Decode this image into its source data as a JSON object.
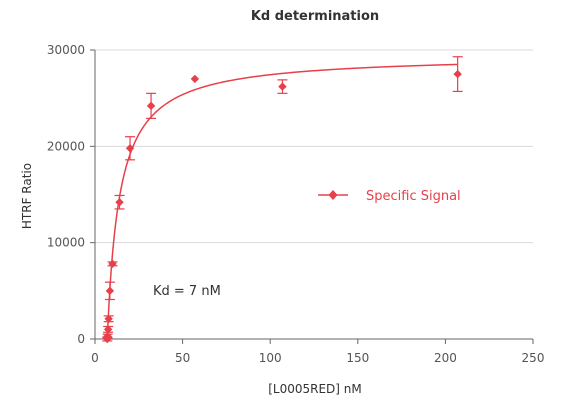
{
  "chart_data": {
    "type": "scatter",
    "title": "Kd determination",
    "xlabel": "[L0005RED] nM",
    "ylabel": "HTRF Ratio",
    "xlim": [
      0,
      250
    ],
    "ylim": [
      0,
      30000
    ],
    "x_ticks": [
      "0",
      "50",
      "100",
      "150",
      "200",
      "250"
    ],
    "y_ticks": [
      "0",
      "10000",
      "20000",
      "30000"
    ],
    "x_tick_values": [
      0,
      50,
      100,
      150,
      200,
      250
    ],
    "y_tick_values": [
      0,
      10000,
      20000,
      30000
    ],
    "grid": "horizontal",
    "legend_position": "center-right",
    "series": [
      {
        "name": "Specific Signal",
        "color": "#e8404a",
        "marker": "diamond",
        "points": [
          {
            "x": 7,
            "y": 0,
            "err": 200
          },
          {
            "x": 7.2,
            "y": 300,
            "err": 200
          },
          {
            "x": 7.5,
            "y": 1000,
            "err": 300
          },
          {
            "x": 7.8,
            "y": 2100,
            "err": 300
          },
          {
            "x": 8.5,
            "y": 5000,
            "err": 900
          },
          {
            "x": 10,
            "y": 7800,
            "err": 200
          },
          {
            "x": 14,
            "y": 14200,
            "err": 700
          },
          {
            "x": 20,
            "y": 19800,
            "err": 1200
          },
          {
            "x": 32,
            "y": 24200,
            "err": 1300
          },
          {
            "x": 57,
            "y": 27000,
            "err": 0
          },
          {
            "x": 107,
            "y": 26200,
            "err": 700
          },
          {
            "x": 207,
            "y": 27500,
            "err": 1800
          }
        ]
      }
    ],
    "fit": {
      "model": "one-site binding",
      "bmax": 29500,
      "kd": 7,
      "offset": 7
    },
    "annotations": [
      {
        "text": "Kd = 7 nM"
      }
    ]
  }
}
